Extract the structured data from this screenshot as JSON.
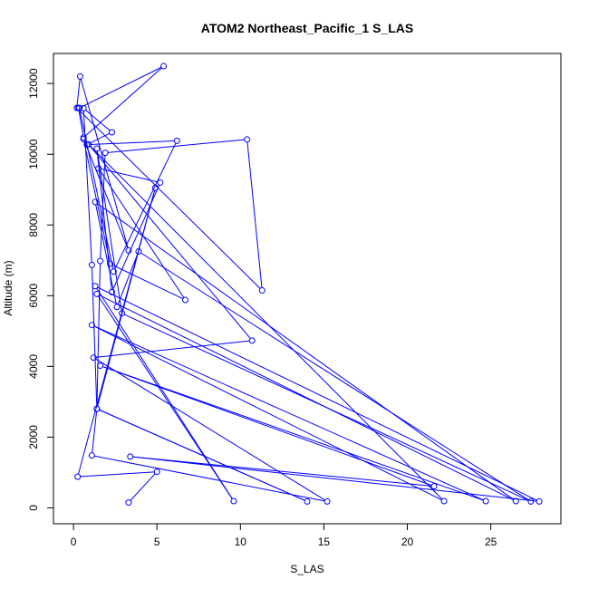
{
  "chart_data": {
    "type": "line",
    "title": "ATOM2 Northeast_Pacific_1 S_LAS",
    "xlabel": "S_LAS",
    "ylabel": "Altitude (m)",
    "xlim": [
      -1.2,
      29.2
    ],
    "ylim": [
      -450,
      12850
    ],
    "x_ticks": [
      0,
      5,
      10,
      15,
      20,
      25
    ],
    "y_ticks": [
      0,
      2000,
      4000,
      6000,
      8000,
      10000,
      12000
    ],
    "grid": false,
    "series": [
      {
        "color": "#0000ff",
        "marker": "open-circle",
        "x": [
          3.3,
          5.0,
          0.25,
          4.9,
          1.4,
          14.0,
          1.4,
          1.1,
          15.2,
          1.2,
          10.7,
          0.9,
          22.2,
          1.1,
          24.7,
          1.6,
          21.6,
          3.4,
          27.9,
          1.3,
          9.6,
          1.4,
          26.5,
          1.3,
          2.6,
          3.9,
          27.4,
          2.9,
          1.4,
          2.3,
          5.2,
          1.5,
          6.7,
          2.2,
          0.6,
          3.3,
          0.4,
          0.2,
          11.3,
          10.4,
          1.9,
          1.6,
          1.4,
          1.1,
          0.6,
          2.3,
          0.8,
          6.2,
          2.4,
          0.35,
          5.4,
          0.6,
          0.3
        ],
        "y": [
          150,
          1020,
          880,
          9050,
          2800,
          180,
          2800,
          1480,
          180,
          4250,
          4730,
          10280,
          190,
          5170,
          190,
          4020,
          610,
          1450,
          180,
          6270,
          190,
          6050,
          190,
          8650,
          5680,
          7250,
          180,
          5500,
          10160,
          6100,
          9200,
          9600,
          5880,
          6900,
          10430,
          7280,
          12200,
          11310,
          6150,
          10420,
          10040,
          6980,
          2800,
          6870,
          11300,
          10620,
          10270,
          10380,
          6680,
          11310,
          12490,
          10470,
          11310
        ]
      }
    ]
  }
}
